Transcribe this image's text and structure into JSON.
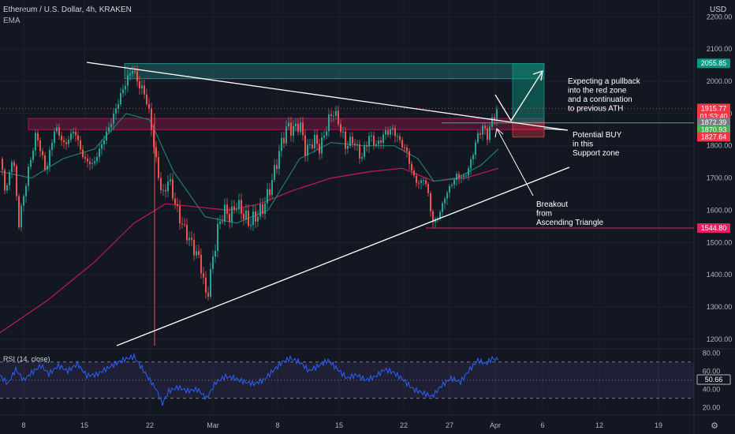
{
  "header": {
    "symbol_title": "Ethereum / U.S. Dollar, 4h, KRAKEN",
    "indicator": "EMA",
    "currency": "USD"
  },
  "colors": {
    "background": "#131722",
    "bull": "#26a69a",
    "bear": "#ef5350",
    "ema_fast": "#1e7c6f",
    "ema_slow": "#c2185b",
    "rsi_line": "#2962ff",
    "rsi_band": "#7e57c2"
  },
  "chart_data": {
    "type": "candlestick",
    "title": "Ethereum / U.S. Dollar, 4h, KRAKEN",
    "y_ticks": [
      2200,
      2100,
      2000,
      1900,
      1800,
      1700,
      1600,
      1500,
      1400,
      1300,
      1200
    ],
    "ylim": [
      1175,
      2240
    ],
    "x_ticks": [
      "8",
      "15",
      "22",
      "Mar",
      "8",
      "15",
      "22",
      "27",
      "Apr",
      "6",
      "12",
      "19"
    ],
    "grid": true,
    "price_path": [
      [
        0,
        1760
      ],
      [
        8,
        1650
      ],
      [
        16,
        1780
      ],
      [
        24,
        1560
      ],
      [
        34,
        1700
      ],
      [
        46,
        1840
      ],
      [
        58,
        1720
      ],
      [
        70,
        1860
      ],
      [
        82,
        1800
      ],
      [
        94,
        1850
      ],
      [
        106,
        1760
      ],
      [
        118,
        1740
      ],
      [
        130,
        1810
      ],
      [
        142,
        1880
      ],
      [
        152,
        1950
      ],
      [
        160,
        2000
      ],
      [
        168,
        2040
      ],
      [
        176,
        1990
      ],
      [
        184,
        1960
      ],
      [
        190,
        1890
      ],
      [
        198,
        1750
      ],
      [
        206,
        1640
      ],
      [
        214,
        1700
      ],
      [
        222,
        1620
      ],
      [
        230,
        1560
      ],
      [
        238,
        1520
      ],
      [
        246,
        1480
      ],
      [
        254,
        1440
      ],
      [
        262,
        1320
      ],
      [
        268,
        1420
      ],
      [
        276,
        1540
      ],
      [
        284,
        1600
      ],
      [
        292,
        1580
      ],
      [
        300,
        1620
      ],
      [
        308,
        1590
      ],
      [
        316,
        1560
      ],
      [
        324,
        1580
      ],
      [
        332,
        1600
      ],
      [
        340,
        1650
      ],
      [
        348,
        1720
      ],
      [
        356,
        1800
      ],
      [
        364,
        1860
      ],
      [
        372,
        1850
      ],
      [
        380,
        1870
      ],
      [
        388,
        1780
      ],
      [
        398,
        1820
      ],
      [
        406,
        1790
      ],
      [
        414,
        1860
      ],
      [
        422,
        1910
      ],
      [
        430,
        1870
      ],
      [
        438,
        1800
      ],
      [
        448,
        1820
      ],
      [
        458,
        1760
      ],
      [
        468,
        1830
      ],
      [
        478,
        1800
      ],
      [
        488,
        1840
      ],
      [
        498,
        1850
      ],
      [
        508,
        1810
      ],
      [
        516,
        1780
      ],
      [
        522,
        1720
      ],
      [
        530,
        1680
      ],
      [
        538,
        1700
      ],
      [
        544,
        1640
      ],
      [
        548,
        1560
      ],
      [
        556,
        1580
      ],
      [
        564,
        1640
      ],
      [
        572,
        1680
      ],
      [
        580,
        1710
      ],
      [
        588,
        1700
      ],
      [
        596,
        1740
      ],
      [
        604,
        1820
      ],
      [
        612,
        1860
      ],
      [
        618,
        1830
      ],
      [
        624,
        1880
      ],
      [
        628,
        1900
      ],
      [
        632,
        1915
      ]
    ],
    "ema_fast_path": [
      [
        0,
        1720
      ],
      [
        40,
        1700
      ],
      [
        80,
        1760
      ],
      [
        120,
        1790
      ],
      [
        160,
        1900
      ],
      [
        190,
        1880
      ],
      [
        220,
        1720
      ],
      [
        260,
        1580
      ],
      [
        300,
        1560
      ],
      [
        340,
        1600
      ],
      [
        380,
        1760
      ],
      [
        420,
        1810
      ],
      [
        460,
        1800
      ],
      [
        500,
        1800
      ],
      [
        530,
        1760
      ],
      [
        550,
        1690
      ],
      [
        580,
        1700
      ],
      [
        610,
        1740
      ],
      [
        632,
        1790
      ]
    ],
    "ema_slow_path": [
      [
        0,
        1220
      ],
      [
        60,
        1320
      ],
      [
        120,
        1440
      ],
      [
        170,
        1560
      ],
      [
        210,
        1620
      ],
      [
        250,
        1610
      ],
      [
        290,
        1600
      ],
      [
        330,
        1620
      ],
      [
        370,
        1660
      ],
      [
        420,
        1700
      ],
      [
        470,
        1720
      ],
      [
        510,
        1730
      ],
      [
        550,
        1690
      ],
      [
        590,
        1700
      ],
      [
        632,
        1730
      ]
    ],
    "rsi_path": [
      [
        0,
        55
      ],
      [
        10,
        46
      ],
      [
        20,
        62
      ],
      [
        30,
        50
      ],
      [
        40,
        58
      ],
      [
        52,
        66
      ],
      [
        62,
        57
      ],
      [
        74,
        66
      ],
      [
        86,
        60
      ],
      [
        98,
        68
      ],
      [
        110,
        55
      ],
      [
        122,
        56
      ],
      [
        134,
        62
      ],
      [
        146,
        68
      ],
      [
        158,
        73
      ],
      [
        170,
        76
      ],
      [
        180,
        63
      ],
      [
        190,
        50
      ],
      [
        198,
        40
      ],
      [
        206,
        24
      ],
      [
        214,
        38
      ],
      [
        226,
        42
      ],
      [
        238,
        38
      ],
      [
        250,
        40
      ],
      [
        262,
        30
      ],
      [
        274,
        48
      ],
      [
        286,
        54
      ],
      [
        298,
        52
      ],
      [
        310,
        48
      ],
      [
        322,
        46
      ],
      [
        334,
        50
      ],
      [
        346,
        60
      ],
      [
        358,
        70
      ],
      [
        368,
        74
      ],
      [
        380,
        70
      ],
      [
        392,
        60
      ],
      [
        404,
        66
      ],
      [
        416,
        72
      ],
      [
        428,
        62
      ],
      [
        440,
        52
      ],
      [
        452,
        56
      ],
      [
        464,
        50
      ],
      [
        476,
        54
      ],
      [
        488,
        62
      ],
      [
        500,
        58
      ],
      [
        512,
        50
      ],
      [
        524,
        40
      ],
      [
        536,
        36
      ],
      [
        548,
        32
      ],
      [
        560,
        44
      ],
      [
        572,
        52
      ],
      [
        584,
        48
      ],
      [
        596,
        62
      ],
      [
        606,
        72
      ],
      [
        616,
        68
      ],
      [
        624,
        74
      ],
      [
        632,
        72
      ]
    ],
    "rsi": {
      "label": "RSI (14, close)",
      "value": "50.66",
      "ylim": [
        15,
        82
      ],
      "ticks": [
        80,
        60,
        40,
        20
      ],
      "band": [
        30,
        70
      ]
    },
    "price_labels": [
      {
        "text": "2055.85",
        "price": 2055.85,
        "color": "#089981"
      },
      {
        "text": "1915.77",
        "price": 1915.77,
        "color": "#f23645"
      },
      {
        "text": "01:53:40",
        "price": 1891,
        "color": "#f23645"
      },
      {
        "text": "1872.39",
        "price": 1872.39,
        "color": "#787b86"
      },
      {
        "text": "1870.93",
        "price": 1849,
        "color": "#4caf50"
      },
      {
        "text": "1827.64",
        "price": 1827.64,
        "color": "#f23645"
      },
      {
        "text": "1544.80",
        "price": 1544.8,
        "color": "#e91e63"
      }
    ],
    "horizontal_lines": [
      {
        "price": 1915.77,
        "color": "#f23645",
        "dashed": true
      },
      {
        "price": 1870.93,
        "color": "#4caf50",
        "dashed": false
      },
      {
        "price": 1544.8,
        "color": "#e91e63",
        "dashed": false
      }
    ],
    "zones": [
      {
        "name": "target-zone",
        "price_top": 2055,
        "price_bottom": 2008,
        "fill": "#26a69a",
        "opacity": 0.3
      },
      {
        "name": "support-zone",
        "price_top": 1885,
        "price_bottom": 1850,
        "fill": "#c2185b",
        "opacity": 0.3
      },
      {
        "name": "long-position-profit",
        "price_top": 2055,
        "price_bottom": 1872,
        "fill": "#089981",
        "opacity": 0.45
      },
      {
        "name": "long-position-stop",
        "price_top": 1872,
        "price_bottom": 1827,
        "fill": "#f23645",
        "opacity": 0.35
      }
    ],
    "annotations": [
      {
        "text": "Expecting a pullback\ninto the red zone\nand a continuation\nto previous ATH"
      },
      {
        "text": "Potential BUY\nin this\nSupport zone"
      },
      {
        "text": "Breakout\nfrom\nAscending Triangle"
      }
    ]
  }
}
